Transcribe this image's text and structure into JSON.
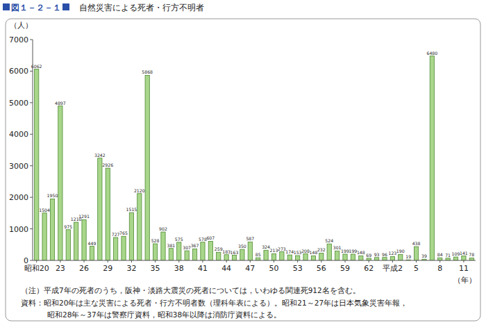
{
  "chart_data": {
    "type": "bar",
    "figure_number": "図１－２－１",
    "title": "自然災害による死者・行方不明者",
    "y_label": "（人）",
    "x_label": "（年）",
    "annotations": [
      "（注）平成7年の死者のうち，阪神・淡路大震災の死者については，いわゆる関連死912名を含む。",
      "資料：昭和20年は主な災害による死者・行方不明者数（理科年表による）。昭和21～27年は日本気象災害年報，",
      "昭和28年～37年は警察庁資料，昭和38年以降は消防庁資料による。"
    ],
    "categories": [
      "昭和20",
      null,
      null,
      "23",
      null,
      null,
      "26",
      null,
      null,
      "29",
      null,
      null,
      "32",
      null,
      null,
      "35",
      null,
      null,
      "38",
      null,
      null,
      "41",
      null,
      null,
      "44",
      null,
      null,
      "47",
      null,
      null,
      "50",
      null,
      null,
      "53",
      null,
      null,
      "56",
      null,
      null,
      "59",
      null,
      null,
      "62",
      null,
      null,
      "平成2",
      null,
      null,
      "5",
      null,
      null,
      "8",
      null,
      null,
      "11",
      null
    ],
    "values": [
      6062,
      1504,
      1950,
      4897,
      975,
      1210,
      1291,
      449,
      3242,
      2926,
      727,
      765,
      1515,
      2120,
      5868,
      528,
      902,
      381,
      575,
      307,
      367,
      578,
      607,
      259,
      183,
      163,
      350,
      587,
      85,
      324,
      213,
      273,
      174,
      153,
      208,
      148,
      232,
      524,
      301,
      199,
      199,
      148,
      69,
      93,
      96,
      123,
      190,
      19,
      438,
      39,
      6480,
      84,
      71,
      109,
      141,
      78
    ],
    "color": "#a8d68a",
    "ylim": [
      0,
      7000
    ],
    "yticks": [
      0,
      1000,
      2000,
      3000,
      4000,
      5000,
      6000,
      7000
    ],
    "grid": false,
    "data_labels": true
  }
}
